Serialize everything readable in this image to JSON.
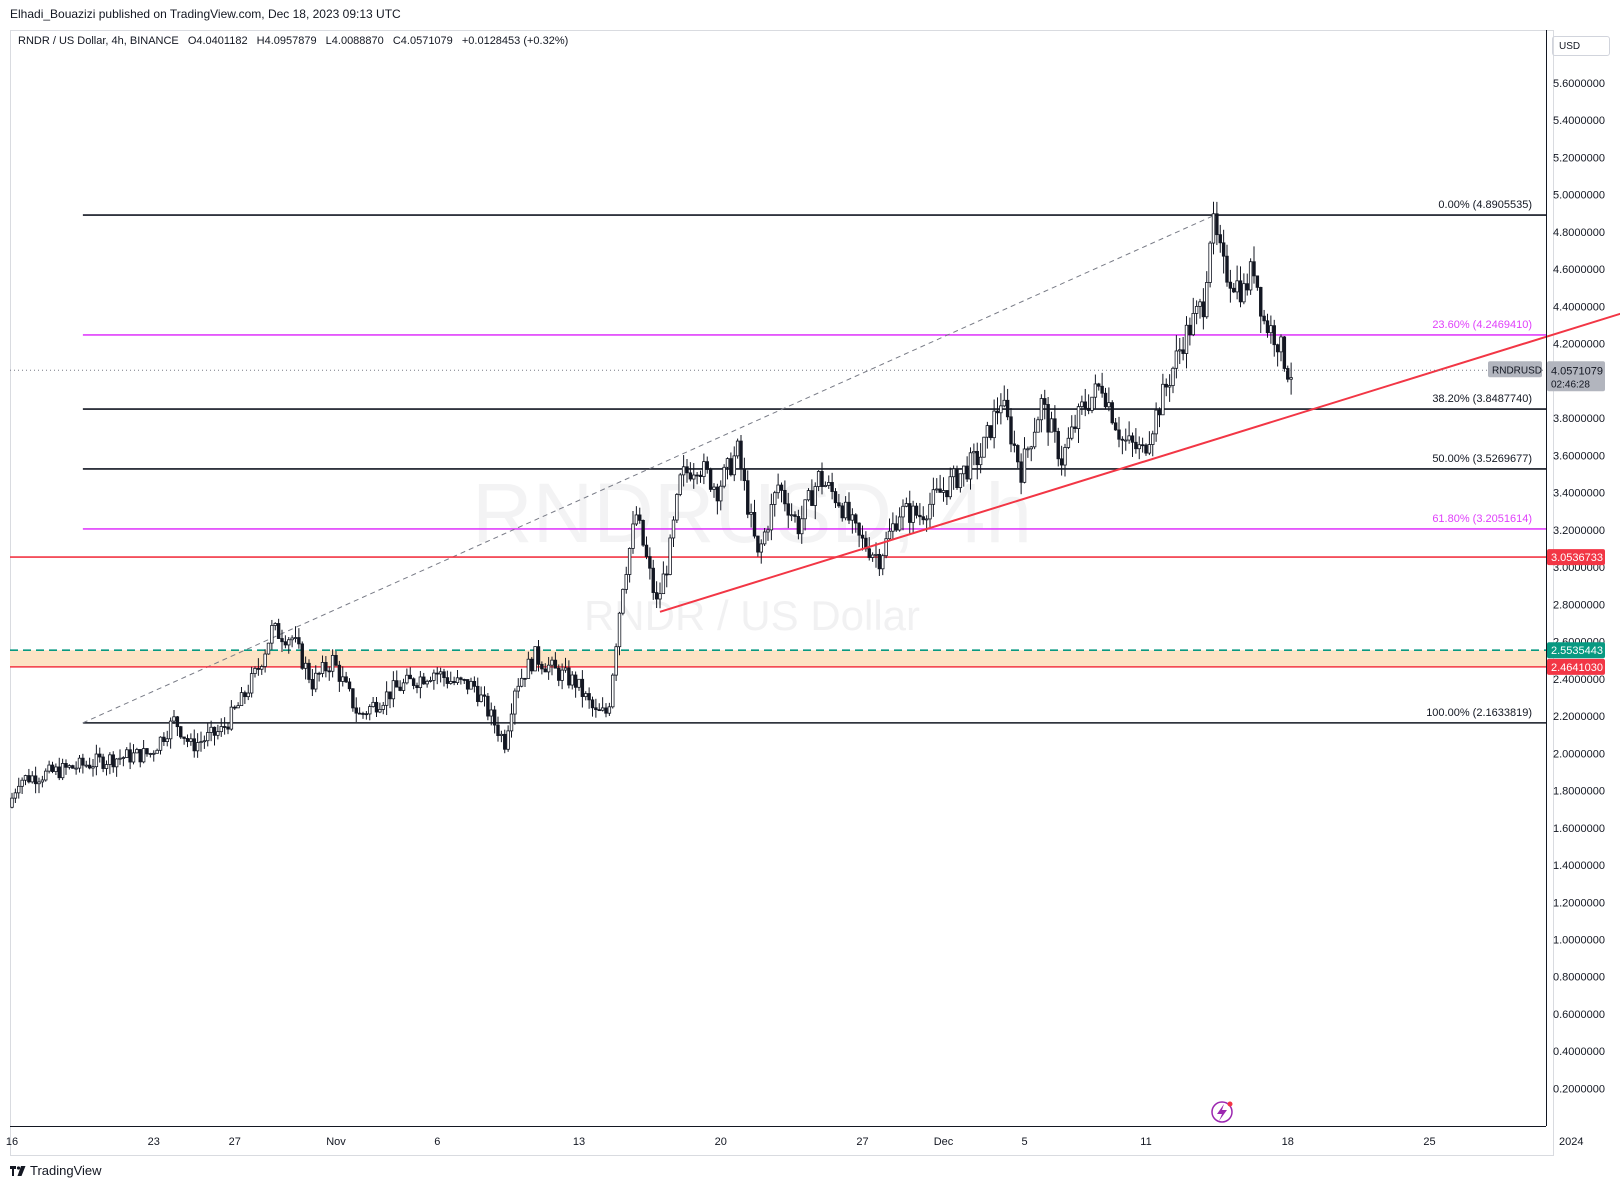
{
  "header": {
    "publisher": "Elhadi_Bouazizi published on TradingView.com, Dec 18, 2023 09:13 UTC"
  },
  "legend": {
    "symbol": "RNDR / US Dollar, 4h, BINANCE",
    "open": "O4.0401182",
    "high": "H4.0957879",
    "low": "L4.0088870",
    "close": "C4.0571079",
    "change": "+0.0128453 (+0.32%)"
  },
  "currency": "USD",
  "watermark": {
    "line1": "RNDRUSD, 4h",
    "line2": "RNDR / US Dollar"
  },
  "brand": "TradingView",
  "colors": {
    "black": "#131722",
    "magenta": "#e040fb",
    "red": "#f23645",
    "teal": "#089981",
    "zone": "#fde3c4",
    "current_price_tag": "#b2b5be"
  },
  "chart_data": {
    "type": "candlestick",
    "price_axis": {
      "min": 0.1,
      "max": 5.8,
      "ticks": [
        "5.6000000",
        "5.4000000",
        "5.2000000",
        "5.0000000",
        "4.8000000",
        "4.6000000",
        "4.4000000",
        "4.2000000",
        "3.8000000",
        "3.6000000",
        "3.4000000",
        "3.2000000",
        "3.0000000",
        "2.8000000",
        "2.6000000",
        "2.4000000",
        "2.2000000",
        "2.0000000",
        "1.8000000",
        "1.6000000",
        "1.4000000",
        "1.2000000",
        "1.0000000",
        "0.8000000",
        "0.6000000",
        "0.4000000",
        "0.2000000"
      ]
    },
    "time_axis": {
      "ticks": [
        "16",
        "23",
        "27",
        "Nov",
        "6",
        "13",
        "20",
        "27",
        "Dec",
        "5",
        "11",
        "18",
        "25",
        "2024"
      ],
      "tick_days": [
        0,
        7,
        11,
        16,
        21,
        28,
        35,
        42,
        46,
        50,
        56,
        63,
        70,
        77
      ]
    },
    "last_bar_day": 63.2,
    "fib_levels": [
      {
        "label": "0.00% (4.8905535)",
        "value": 4.8905535,
        "color": "#131722"
      },
      {
        "label": "23.60% (4.2469410)",
        "value": 4.246941,
        "color": "#e040fb"
      },
      {
        "label": "38.20% (3.8487740)",
        "value": 3.848774,
        "color": "#131722"
      },
      {
        "label": "50.00% (3.5269677)",
        "value": 3.5269677,
        "color": "#131722"
      },
      {
        "label": "61.80% (3.2051614)",
        "value": 3.2051614,
        "color": "#e040fb"
      },
      {
        "label": "100.00% (2.1633819)",
        "value": 2.1633819,
        "color": "#131722"
      }
    ],
    "fib_start_day": 3.5,
    "fib_anchor_low": {
      "day": 3.5,
      "price": 2.1633819
    },
    "fib_anchor_high": {
      "day": 59.4,
      "price": 4.8905535
    },
    "horizontal_levels": [
      {
        "label": "3.0536733",
        "value": 3.0536733,
        "color": "#f23645"
      },
      {
        "label": "2.5535443",
        "value": 2.5535443,
        "color": "#089981"
      },
      {
        "label": "2.4641030",
        "value": 2.464103,
        "color": "#f23645"
      }
    ],
    "trendline": {
      "from": {
        "day": 32.0,
        "price": 2.76
      },
      "to": {
        "day": 80.0,
        "price": 4.38
      }
    },
    "current_price": {
      "value": "4.0571079",
      "symbol": "RNDRUSD",
      "countdown": "02:46:28"
    },
    "price_path": [
      [
        0,
        1.71
      ],
      [
        0.5,
        1.86
      ],
      [
        1.5,
        1.88
      ],
      [
        3,
        1.92
      ],
      [
        5,
        1.97
      ],
      [
        7,
        2.0
      ],
      [
        8.2,
        2.18
      ],
      [
        9,
        2.04
      ],
      [
        10.5,
        2.12
      ],
      [
        11.5,
        2.28
      ],
      [
        12.3,
        2.45
      ],
      [
        13,
        2.66
      ],
      [
        14,
        2.62
      ],
      [
        15,
        2.38
      ],
      [
        16,
        2.5
      ],
      [
        17.3,
        2.2
      ],
      [
        19,
        2.34
      ],
      [
        21,
        2.44
      ],
      [
        22,
        2.38
      ],
      [
        23,
        2.36
      ],
      [
        24.5,
        2.06
      ],
      [
        25,
        2.36
      ],
      [
        26,
        2.52
      ],
      [
        27,
        2.44
      ],
      [
        28,
        2.38
      ],
      [
        29,
        2.21
      ],
      [
        29.6,
        2.22
      ],
      [
        30.3,
        2.9
      ],
      [
        31,
        3.28
      ],
      [
        32,
        2.8
      ],
      [
        32.6,
        3.05
      ],
      [
        33.2,
        3.48
      ],
      [
        34,
        3.56
      ],
      [
        35,
        3.42
      ],
      [
        36,
        3.62
      ],
      [
        37,
        3.05
      ],
      [
        38,
        3.44
      ],
      [
        39,
        3.22
      ],
      [
        40,
        3.48
      ],
      [
        41,
        3.36
      ],
      [
        42,
        3.15
      ],
      [
        43,
        3.05
      ],
      [
        44,
        3.3
      ],
      [
        45,
        3.28
      ],
      [
        46,
        3.4
      ],
      [
        47,
        3.5
      ],
      [
        48,
        3.6
      ],
      [
        49,
        3.9
      ],
      [
        50,
        3.52
      ],
      [
        51,
        3.88
      ],
      [
        52,
        3.58
      ],
      [
        53,
        3.85
      ],
      [
        54,
        3.98
      ],
      [
        55,
        3.68
      ],
      [
        56,
        3.62
      ],
      [
        57,
        3.92
      ],
      [
        58,
        4.22
      ],
      [
        59,
        4.42
      ],
      [
        59.4,
        4.86
      ],
      [
        60,
        4.6
      ],
      [
        61,
        4.48
      ],
      [
        61.5,
        4.62
      ],
      [
        62,
        4.32
      ],
      [
        62.6,
        4.24
      ],
      [
        63.2,
        4.05
      ]
    ]
  }
}
